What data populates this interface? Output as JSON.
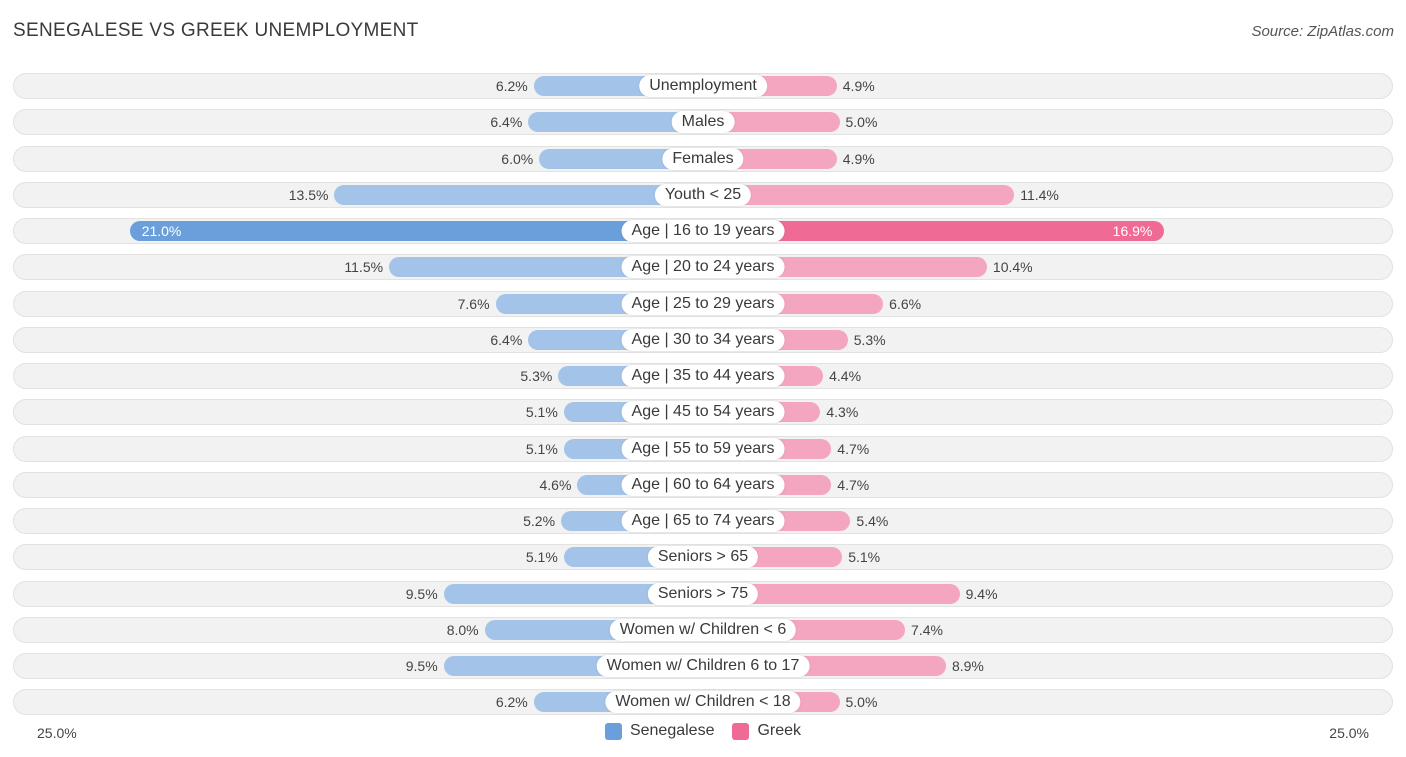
{
  "header": {
    "title": "SENEGALESE VS GREEK UNEMPLOYMENT",
    "source": "Source: ZipAtlas.com"
  },
  "colors": {
    "senegalese": "#a3c3e9",
    "senegalese_highlight": "#6a9fdc",
    "greek": "#f4a6c0",
    "greek_highlight": "#f06a96"
  },
  "chart_data": {
    "type": "bar",
    "orientation": "horizontal-diverging",
    "title": "SENEGALESE VS GREEK UNEMPLOYMENT",
    "axis_max": 25.0,
    "axis_left_label": "25.0%",
    "axis_right_label": "25.0%",
    "categories": [
      "Unemployment",
      "Males",
      "Females",
      "Youth < 25",
      "Age | 16 to 19 years",
      "Age | 20 to 24 years",
      "Age | 25 to 29 years",
      "Age | 30 to 34 years",
      "Age | 35 to 44 years",
      "Age | 45 to 54 years",
      "Age | 55 to 59 years",
      "Age | 60 to 64 years",
      "Age | 65 to 74 years",
      "Seniors > 65",
      "Seniors > 75",
      "Women w/ Children < 6",
      "Women w/ Children 6 to 17",
      "Women w/ Children < 18"
    ],
    "series": [
      {
        "name": "Senegalese",
        "values": [
          6.2,
          6.4,
          6.0,
          13.5,
          21.0,
          11.5,
          7.6,
          6.4,
          5.3,
          5.1,
          5.1,
          4.6,
          5.2,
          5.1,
          9.5,
          8.0,
          9.5,
          6.2
        ],
        "labels": [
          "6.2%",
          "6.4%",
          "6.0%",
          "13.5%",
          "21.0%",
          "11.5%",
          "7.6%",
          "6.4%",
          "5.3%",
          "5.1%",
          "5.1%",
          "4.6%",
          "5.2%",
          "5.1%",
          "9.5%",
          "8.0%",
          "9.5%",
          "6.2%"
        ]
      },
      {
        "name": "Greek",
        "values": [
          4.9,
          5.0,
          4.9,
          11.4,
          16.9,
          10.4,
          6.6,
          5.3,
          4.4,
          4.3,
          4.7,
          4.7,
          5.4,
          5.1,
          9.4,
          7.4,
          8.9,
          5.0
        ],
        "labels": [
          "4.9%",
          "5.0%",
          "4.9%",
          "11.4%",
          "16.9%",
          "10.4%",
          "6.6%",
          "5.3%",
          "4.4%",
          "4.3%",
          "4.7%",
          "4.7%",
          "5.4%",
          "5.1%",
          "9.4%",
          "7.4%",
          "8.9%",
          "5.0%"
        ]
      }
    ],
    "highlight_index": 4,
    "legend": [
      "Senegalese",
      "Greek"
    ],
    "legend_position": "bottom-center"
  }
}
